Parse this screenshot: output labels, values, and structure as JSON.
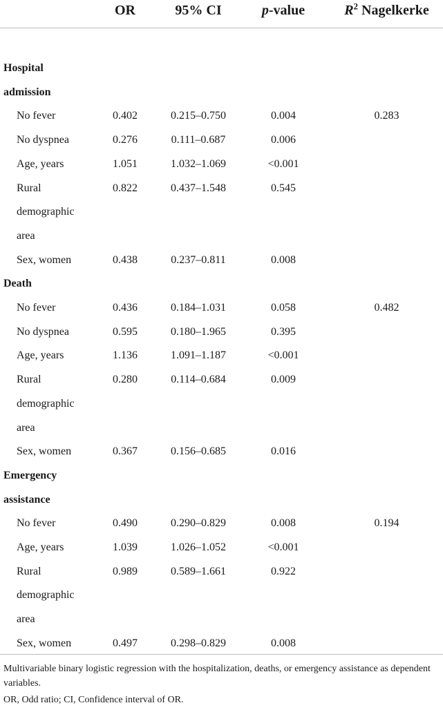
{
  "header": {
    "or": "OR",
    "ci": "95% CI",
    "p_italic": "p",
    "p_rest": "-value",
    "r2_base": "R",
    "r2_sup": "2",
    "r2_rest": " Nagelkerke"
  },
  "rows": [
    {
      "kind": "section",
      "label": "Hospital"
    },
    {
      "kind": "section",
      "label": "admission"
    },
    {
      "kind": "data",
      "label": "No fever",
      "or": "0.402",
      "ci": "0.215–0.750",
      "p": "0.004",
      "r2": "0.283"
    },
    {
      "kind": "data",
      "label": "No dyspnea",
      "or": "0.276",
      "ci": "0.111–0.687",
      "p": "0.006",
      "r2": ""
    },
    {
      "kind": "data",
      "label": "Age, years",
      "or": "1.051",
      "ci": "1.032–1.069",
      "p": "<0.001",
      "r2": ""
    },
    {
      "kind": "data",
      "label": "Rural",
      "or": "0.822",
      "ci": "0.437–1.548",
      "p": "0.545",
      "r2": ""
    },
    {
      "kind": "wrap",
      "label": "demographic"
    },
    {
      "kind": "wrap",
      "label": "area"
    },
    {
      "kind": "data",
      "label": "Sex, women",
      "or": "0.438",
      "ci": "0.237–0.811",
      "p": "0.008",
      "r2": ""
    },
    {
      "kind": "section",
      "label": "Death"
    },
    {
      "kind": "data",
      "label": "No fever",
      "or": "0.436",
      "ci": "0.184–1.031",
      "p": "0.058",
      "r2": "0.482"
    },
    {
      "kind": "data",
      "label": "No dyspnea",
      "or": "0.595",
      "ci": "0.180–1.965",
      "p": "0.395",
      "r2": ""
    },
    {
      "kind": "data",
      "label": "Age, years",
      "or": "1.136",
      "ci": "1.091–1.187",
      "p": "<0.001",
      "r2": ""
    },
    {
      "kind": "data",
      "label": "Rural",
      "or": "0.280",
      "ci": "0.114–0.684",
      "p": "0.009",
      "r2": ""
    },
    {
      "kind": "wrap",
      "label": "demographic"
    },
    {
      "kind": "wrap",
      "label": "area"
    },
    {
      "kind": "data",
      "label": "Sex, women",
      "or": "0.367",
      "ci": "0.156–0.685",
      "p": "0.016",
      "r2": ""
    },
    {
      "kind": "section",
      "label": "Emergency"
    },
    {
      "kind": "section",
      "label": "assistance"
    },
    {
      "kind": "data",
      "label": "No fever",
      "or": "0.490",
      "ci": "0.290–0.829",
      "p": "0.008",
      "r2": "0.194"
    },
    {
      "kind": "data",
      "label": "Age, years",
      "or": "1.039",
      "ci": "1.026–1.052",
      "p": "<0.001",
      "r2": ""
    },
    {
      "kind": "data",
      "label": "Rural",
      "or": "0.989",
      "ci": "0.589–1.661",
      "p": "0.922",
      "r2": ""
    },
    {
      "kind": "wrap",
      "label": "demographic"
    },
    {
      "kind": "wrap",
      "label": "area"
    },
    {
      "kind": "data",
      "label": "Sex, women",
      "or": "0.497",
      "ci": "0.298–0.829",
      "p": "0.008",
      "r2": ""
    }
  ],
  "footnotes": {
    "line1": "Multivariable binary logistic regression with the hospitalization, deaths, or emergency assistance as dependent variables.",
    "line2": "OR, Odd ratio; CI, Confidence interval of OR."
  }
}
